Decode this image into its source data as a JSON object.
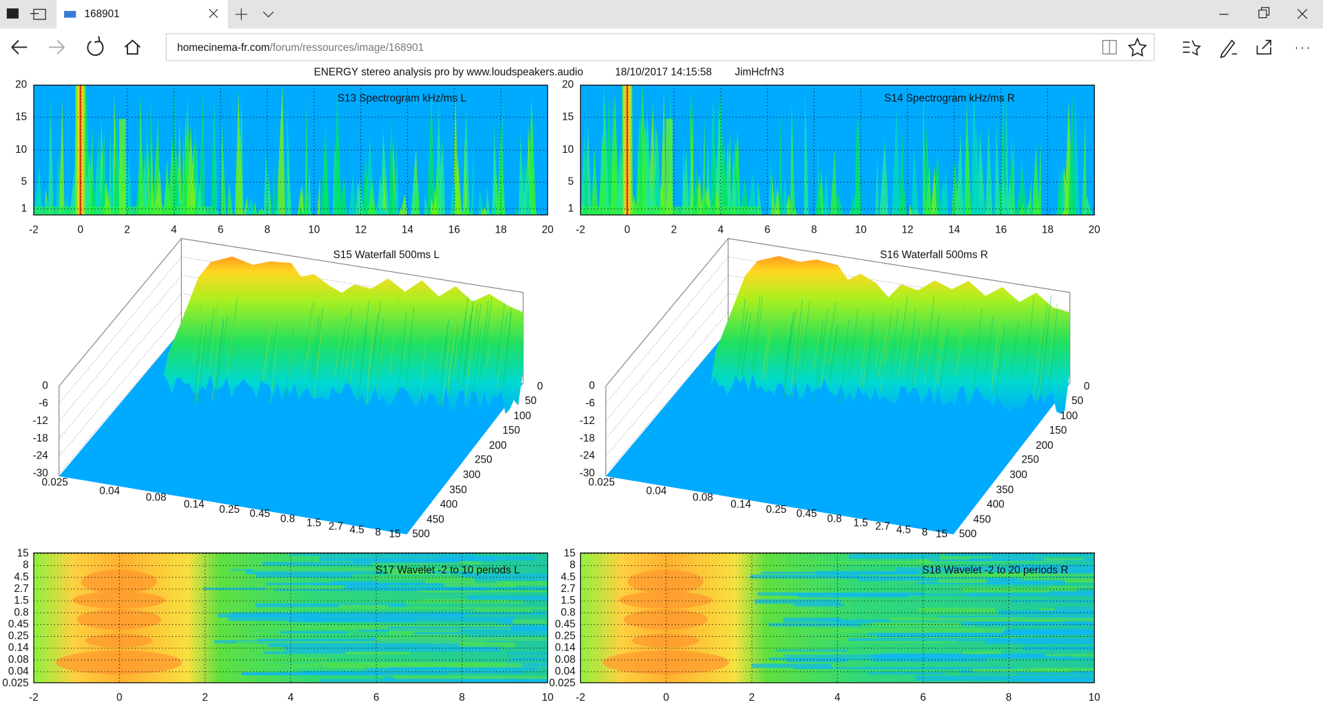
{
  "browser": {
    "tab_title": "168901",
    "url_domain": "homecinema-fr.com",
    "url_path": "/forum/ressources/image/168901"
  },
  "header": {
    "title": "ENERGY stereo analysis pro by www.loudspeakers.audio",
    "date": "18/10/2017 14:15:58",
    "user": "JimHcfrN3"
  },
  "spectrograms": {
    "titles": [
      "S13  Spectrogram kHz/ms L",
      "S14  Spectrogram kHz/ms R"
    ],
    "yticks": [
      "20",
      "15",
      "10",
      "5",
      "1"
    ],
    "xticks": [
      "-2",
      "0",
      "2",
      "4",
      "6",
      "8",
      "10",
      "12",
      "14",
      "16",
      "18",
      "20"
    ]
  },
  "waterfalls": {
    "titles": [
      "S15  Waterfall 500ms L",
      "S16  Waterfall 500ms R"
    ],
    "level_ticks": [
      "0",
      "-6",
      "-12",
      "-18",
      "-24",
      "-30"
    ],
    "freq_ticks": [
      "0.025",
      "0.04",
      "0.08",
      "0.14",
      "0.25",
      "0.45",
      "0.8",
      "1.5",
      "2.7",
      "4.5",
      "8",
      "15"
    ],
    "time_ticks": [
      "0",
      "50",
      "100",
      "150",
      "200",
      "250",
      "300",
      "350",
      "400",
      "450",
      "500"
    ]
  },
  "wavelets": {
    "titles": [
      "S17  Wavelet -2 to 10 periods L",
      "S18  Wavelet -2 to 20 periods R"
    ],
    "yticks": [
      "15",
      "8",
      "4.5",
      "2.7",
      "1.5",
      "0.8",
      "0.45",
      "0.25",
      "0.14",
      "0.08",
      "0.04",
      "0.025"
    ],
    "xticks": [
      "-2",
      "0",
      "2",
      "4",
      "6",
      "8",
      "10"
    ]
  }
}
